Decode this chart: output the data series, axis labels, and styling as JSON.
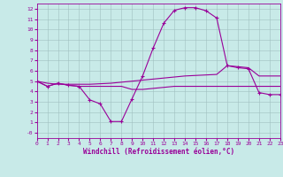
{
  "xlabel": "Windchill (Refroidissement éolien,°C)",
  "background_color": "#c8eae8",
  "line_color": "#990099",
  "grid_color": "#a0c0c0",
  "xlim": [
    0,
    23
  ],
  "ylim": [
    -0.5,
    12.5
  ],
  "xticks": [
    0,
    1,
    2,
    3,
    4,
    5,
    6,
    7,
    8,
    9,
    10,
    11,
    12,
    13,
    14,
    15,
    16,
    17,
    18,
    19,
    20,
    21,
    22,
    23
  ],
  "yticks": [
    0,
    1,
    2,
    3,
    4,
    5,
    6,
    7,
    8,
    9,
    10,
    11,
    12
  ],
  "ytick_labels": [
    "-0",
    "1",
    "2",
    "3",
    "4",
    "5",
    "6",
    "7",
    "8",
    "9",
    "10",
    "11",
    "12"
  ],
  "curve_main_x": [
    0,
    1,
    2,
    3,
    4,
    5,
    6,
    7,
    8,
    9,
    10,
    11,
    12,
    13,
    14,
    15,
    16,
    17,
    18,
    19,
    20,
    21,
    22,
    23
  ],
  "curve_main_y": [
    5.0,
    4.5,
    4.8,
    4.6,
    4.5,
    3.2,
    2.8,
    1.1,
    1.1,
    3.3,
    5.5,
    8.2,
    10.6,
    11.85,
    12.1,
    12.1,
    11.8,
    11.1,
    6.5,
    6.3,
    6.2,
    3.9,
    3.7,
    3.7
  ],
  "curve_flat_x": [
    0,
    1,
    2,
    3,
    4,
    5,
    6,
    7,
    8,
    9,
    10,
    11,
    12,
    13,
    14,
    15,
    16,
    17,
    18,
    19,
    20,
    21,
    22,
    23
  ],
  "curve_flat_y": [
    5.0,
    4.5,
    4.8,
    4.6,
    4.5,
    4.5,
    4.5,
    4.5,
    4.5,
    4.2,
    4.2,
    4.3,
    4.4,
    4.5,
    4.5,
    4.5,
    4.5,
    4.5,
    4.5,
    4.5,
    4.5,
    4.5,
    4.5,
    4.5
  ],
  "curve_diag_x": [
    0,
    1,
    2,
    3,
    4,
    5,
    6,
    7,
    8,
    9,
    10,
    11,
    12,
    13,
    14,
    15,
    16,
    17,
    18,
    19,
    20,
    21,
    22,
    23
  ],
  "curve_diag_y": [
    5.0,
    4.8,
    4.7,
    4.7,
    4.7,
    4.7,
    4.75,
    4.8,
    4.9,
    5.0,
    5.1,
    5.2,
    5.3,
    5.4,
    5.5,
    5.55,
    5.6,
    5.65,
    6.5,
    6.4,
    6.3,
    5.5,
    5.5,
    5.5
  ]
}
